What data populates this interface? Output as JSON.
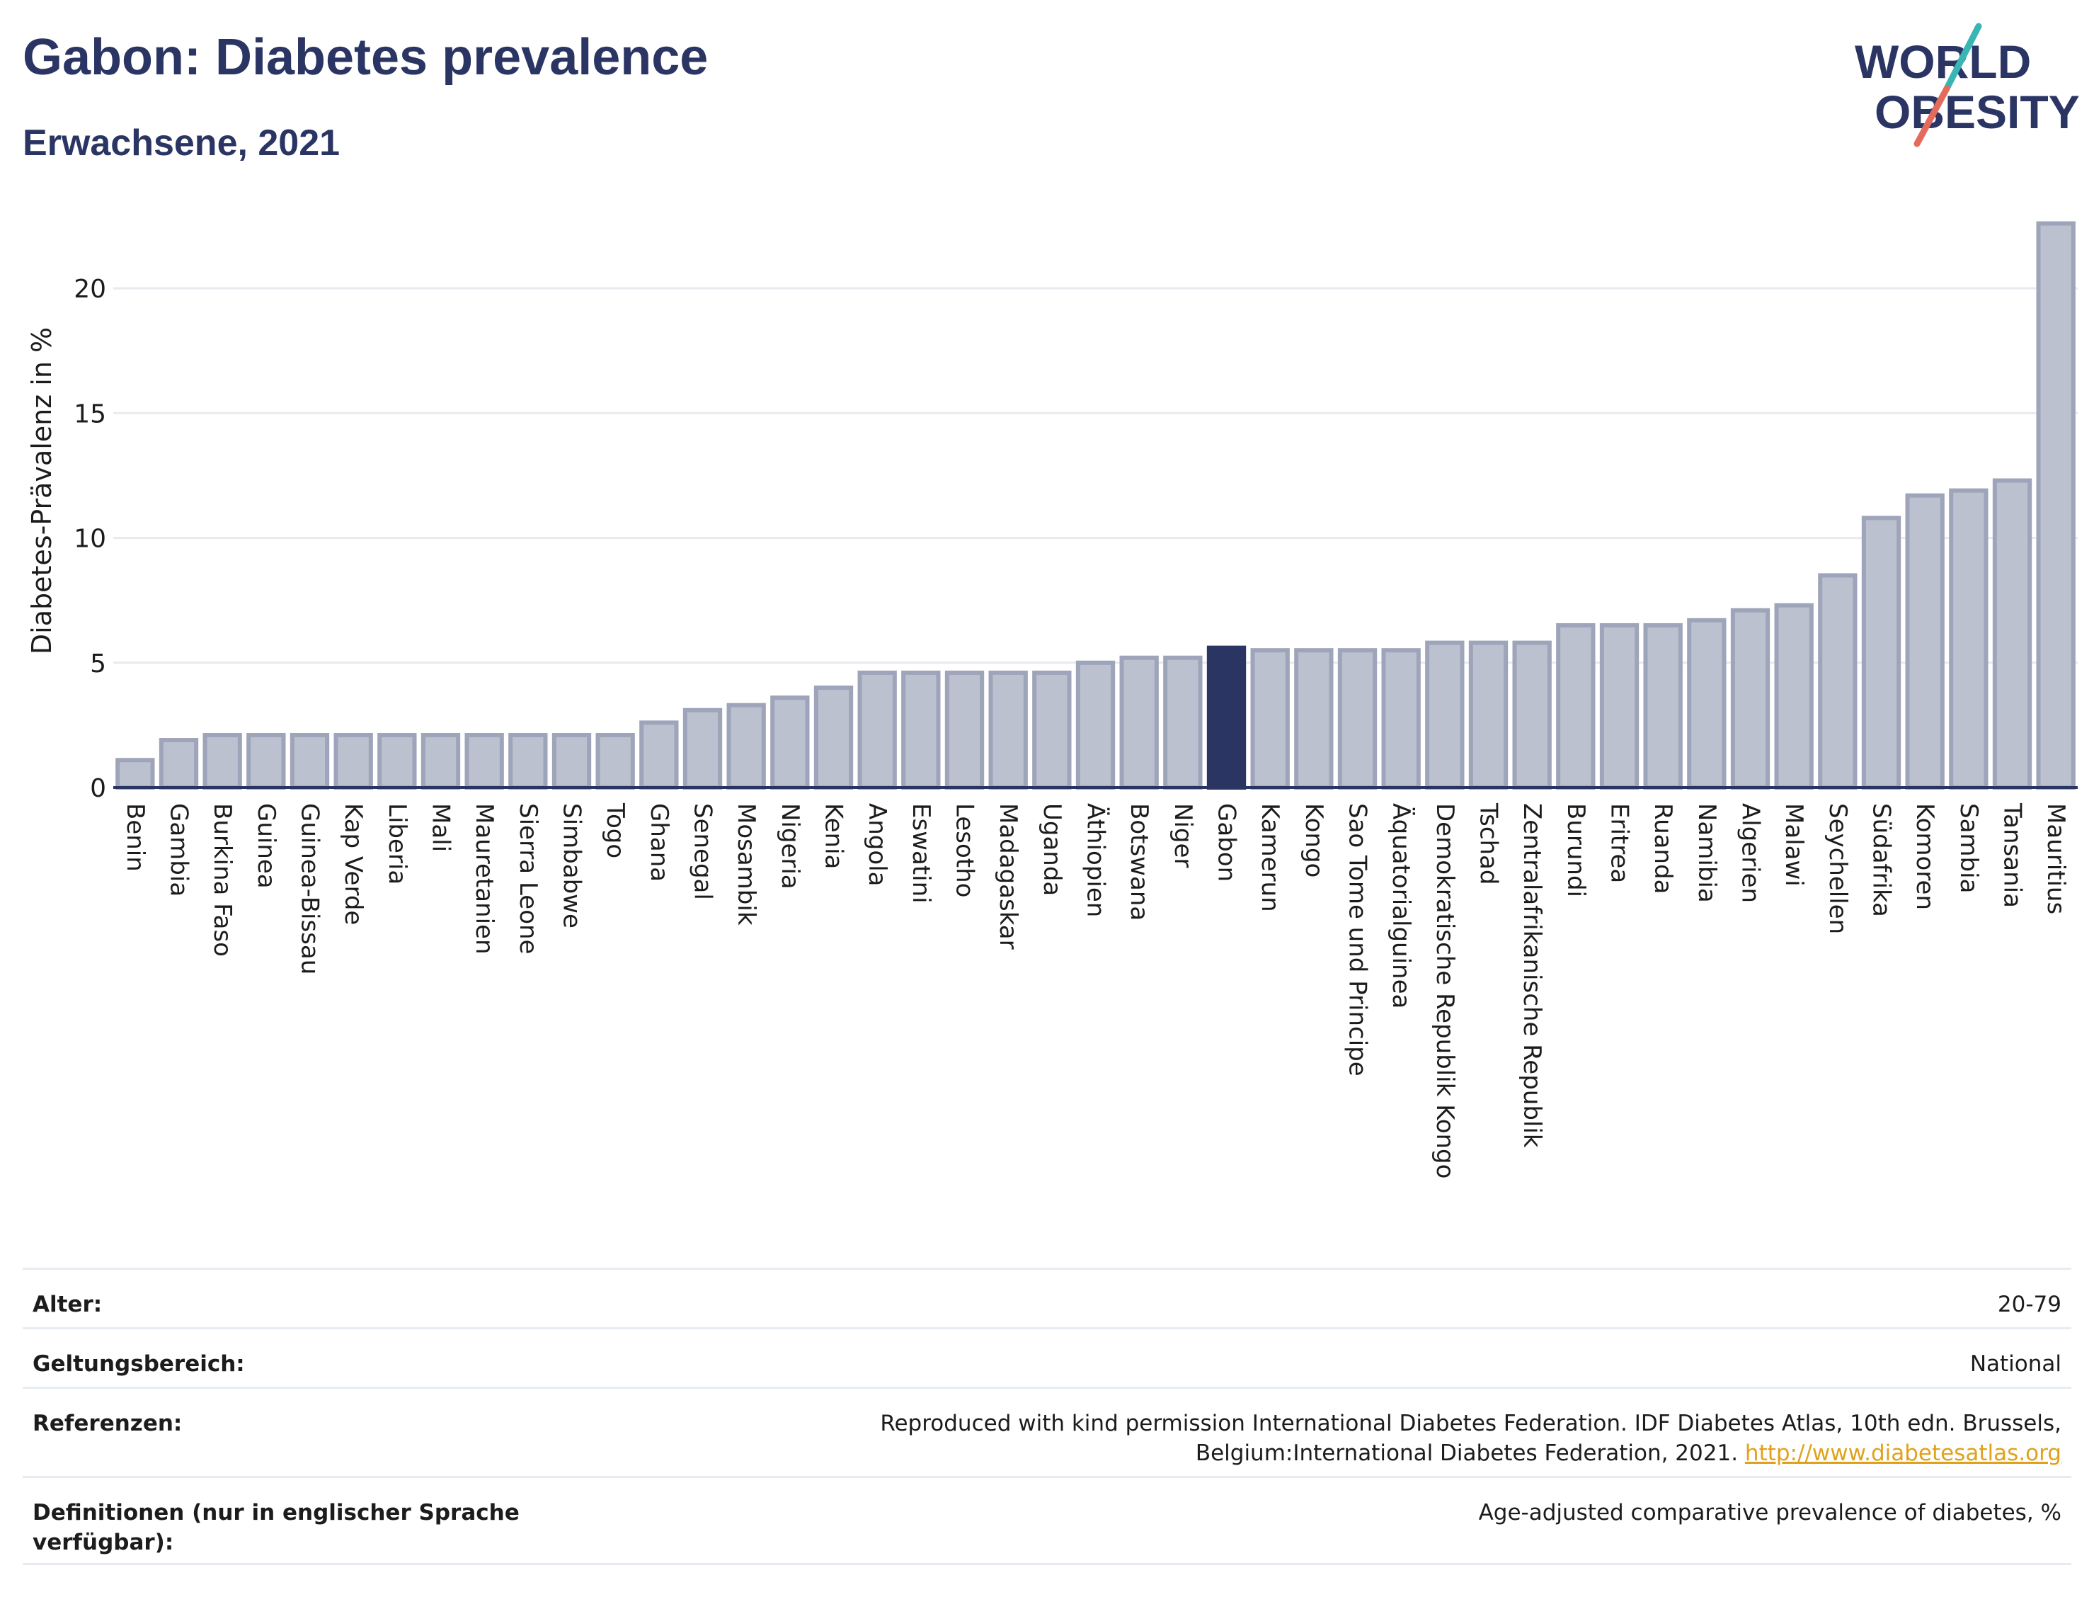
{
  "header": {
    "title": "Gabon: Diabetes prevalence",
    "subtitle": "Erwachsene, 2021"
  },
  "logo": {
    "line1": "WORLD",
    "line2": "OBESITY"
  },
  "colors": {
    "bar_fill": "#bcc1d0",
    "bar_stroke": "#9ea4b9",
    "highlight": "#2a3563",
    "grid": "#e8eaf0",
    "axis": "#2a3563",
    "link": "#e0a21b",
    "logo_text": "#2a3563",
    "logo_teal": "#3ab5b5",
    "logo_coral": "#e46b5c"
  },
  "chart_data": {
    "type": "bar",
    "title": "Gabon: Diabetes prevalence",
    "subtitle": "Erwachsene, 2021",
    "xlabel": "",
    "ylabel": "Diabetes-Prävalenz in %",
    "ylim": [
      0,
      22.7
    ],
    "yticks": [
      0,
      5,
      10,
      15,
      20
    ],
    "grid": true,
    "highlight": "Gabon",
    "categories": [
      "Benin",
      "Gambia",
      "Burkina Faso",
      "Guinea",
      "Guinea-Bissau",
      "Kap Verde",
      "Liberia",
      "Mali",
      "Mauretanien",
      "Sierra Leone",
      "Simbabwe",
      "Togo",
      "Ghana",
      "Senegal",
      "Mosambik",
      "Nigeria",
      "Kenia",
      "Angola",
      "Eswatini",
      "Lesotho",
      "Madagaskar",
      "Uganda",
      "Äthiopien",
      "Botswana",
      "Niger",
      "Gabon",
      "Kamerun",
      "Kongo",
      "Sao Tome und Principe",
      "Äquatorialguinea",
      "Demokratische Republik Kongo",
      "Tschad",
      "Zentralafrikanische Republik",
      "Burundi",
      "Eritrea",
      "Ruanda",
      "Namibia",
      "Algerien",
      "Malawi",
      "Seychellen",
      "Südafrika",
      "Komoren",
      "Sambia",
      "Tansania",
      "Mauritius"
    ],
    "values": [
      1.1,
      1.9,
      2.1,
      2.1,
      2.1,
      2.1,
      2.1,
      2.1,
      2.1,
      2.1,
      2.1,
      2.1,
      2.6,
      3.1,
      3.3,
      3.6,
      4.0,
      4.6,
      4.6,
      4.6,
      4.6,
      4.6,
      5.0,
      5.2,
      5.2,
      5.6,
      5.5,
      5.5,
      5.5,
      5.5,
      5.8,
      5.8,
      5.8,
      6.5,
      6.5,
      6.5,
      6.7,
      7.1,
      7.3,
      8.5,
      10.8,
      11.7,
      11.9,
      12.3,
      22.6
    ]
  },
  "meta": {
    "rows": [
      {
        "label": "Alter:",
        "value": "20-79"
      },
      {
        "label": "Geltungsbereich:",
        "value": "National"
      },
      {
        "label": "Referenzen:",
        "value": "Reproduced with kind permission International Diabetes Federation.  IDF Diabetes Atlas, 10th edn. Brussels, Belgium:International Diabetes Federation, 2021.",
        "link": "http://www.diabetesatlas.org"
      },
      {
        "label": "Definitionen (nur in englischer Sprache verfügbar):",
        "value": "Age-adjusted comparative prevalence of diabetes, %"
      }
    ]
  }
}
